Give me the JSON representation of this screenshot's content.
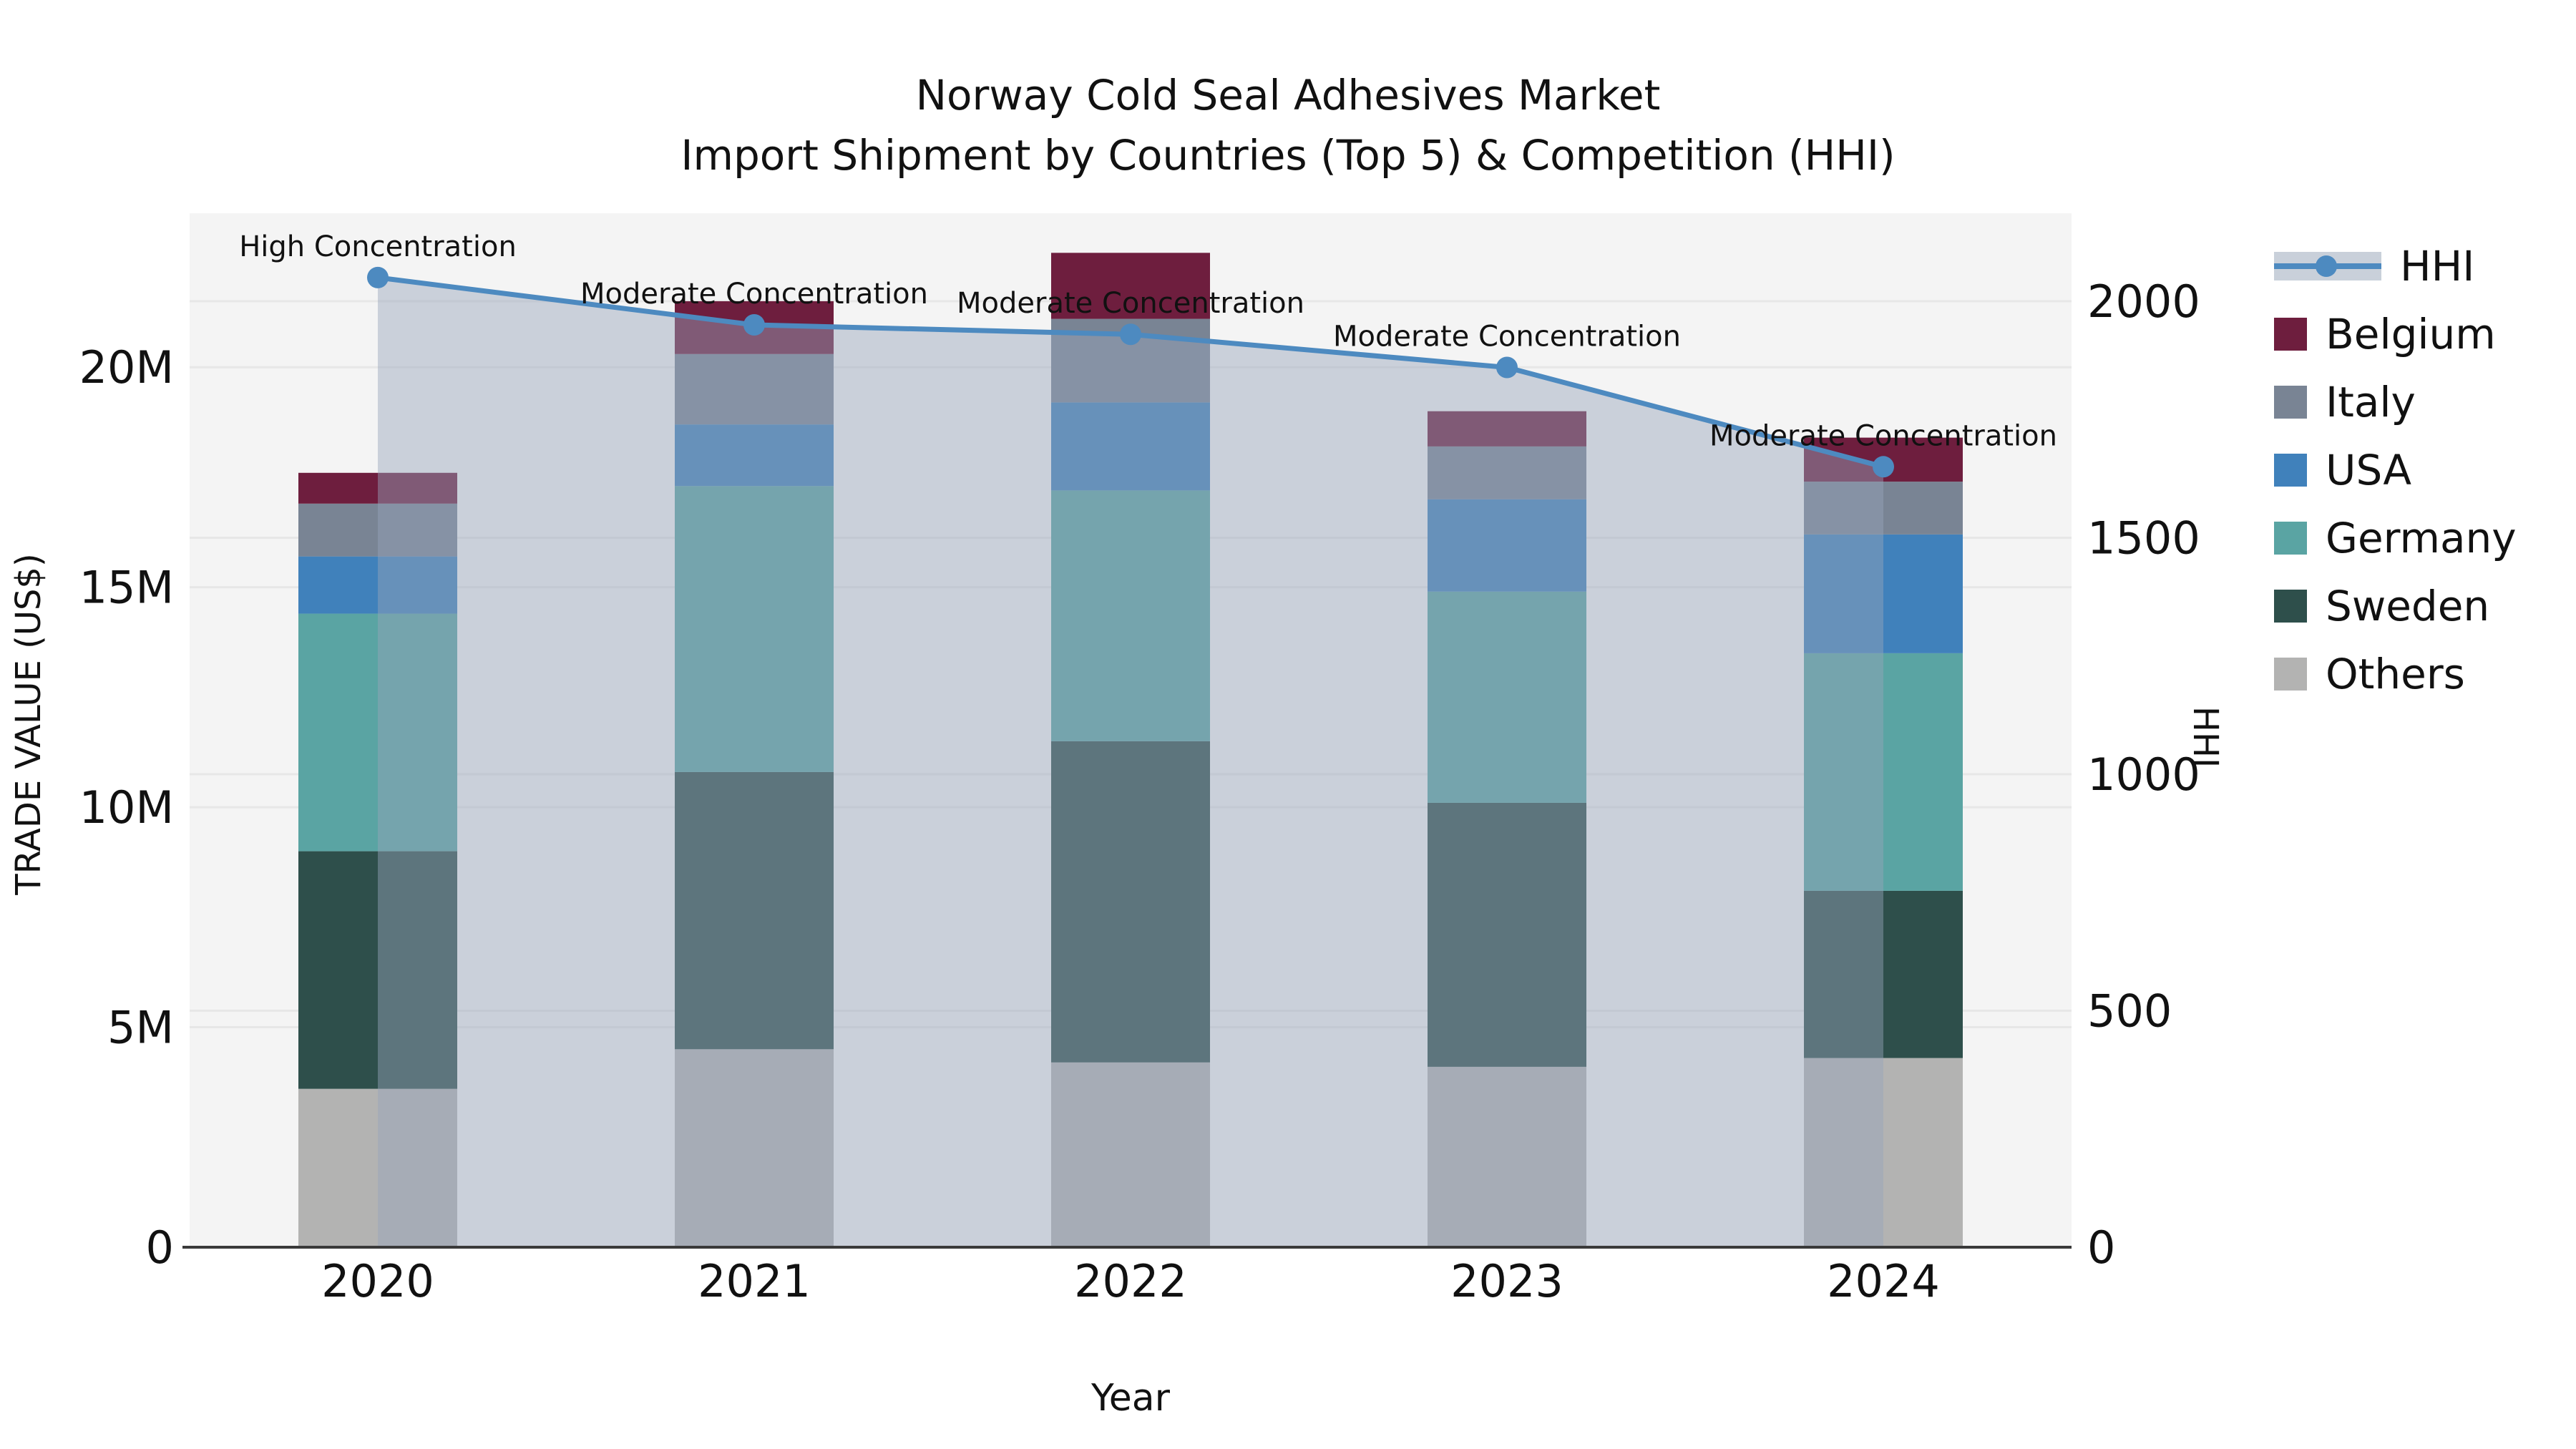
{
  "title": {
    "line1": "Norway Cold Seal Adhesives Market",
    "line2": "Import Shipment by Countries (Top 5) & Competition (HHI)"
  },
  "axes": {
    "left": {
      "title": "TRADE VALUE (US$)",
      "ticks": [
        {
          "label": "0",
          "value": 0
        },
        {
          "label": "5M",
          "value": 5
        },
        {
          "label": "10M",
          "value": 10
        },
        {
          "label": "15M",
          "value": 15
        },
        {
          "label": "20M",
          "value": 20
        }
      ]
    },
    "right": {
      "title": "HHI",
      "ticks": [
        {
          "label": "0",
          "value": 0
        },
        {
          "label": "500",
          "value": 500
        },
        {
          "label": "1000",
          "value": 1000
        },
        {
          "label": "1500",
          "value": 1500
        },
        {
          "label": "2000",
          "value": 2000
        }
      ]
    },
    "x": {
      "title": "Year"
    }
  },
  "legend": {
    "items": [
      {
        "label": "HHI",
        "type": "line"
      },
      {
        "label": "Belgium",
        "color": "#6e1e3e"
      },
      {
        "label": "Italy",
        "color": "#798494"
      },
      {
        "label": "USA",
        "color": "#4081bb"
      },
      {
        "label": "Germany",
        "color": "#5aa4a3"
      },
      {
        "label": "Sweden",
        "color": "#2e4f4b"
      },
      {
        "label": "Others",
        "color": "#b3b3b2"
      }
    ]
  },
  "annotations": [
    {
      "year": "2020",
      "text": "High Concentration"
    },
    {
      "year": "2021",
      "text": "Moderate Concentration"
    },
    {
      "year": "2022",
      "text": "Moderate Concentration"
    },
    {
      "year": "2023",
      "text": "Moderate Concentration"
    },
    {
      "year": "2024",
      "text": "Moderate Concentration"
    }
  ],
  "chart_data": {
    "type": "bar",
    "subtype": "stacked bars (trade value, left axis) with HHI line + shaded area overlay (right axis)",
    "title": "Norway Cold Seal Adhesives Market — Import Shipment by Countries (Top 5) & Competition (HHI)",
    "categories": [
      "2020",
      "2021",
      "2022",
      "2023",
      "2024"
    ],
    "stack_order_bottom_to_top": [
      "Others",
      "Sweden",
      "Germany",
      "USA",
      "Italy",
      "Belgium"
    ],
    "series": [
      {
        "name": "Others",
        "axis": "left",
        "color": "#b3b3b2",
        "values": [
          3.6,
          4.5,
          4.2,
          4.1,
          4.3
        ]
      },
      {
        "name": "Sweden",
        "axis": "left",
        "color": "#2e4f4b",
        "values": [
          5.4,
          6.3,
          7.3,
          6.0,
          3.8
        ]
      },
      {
        "name": "Germany",
        "axis": "left",
        "color": "#5aa4a3",
        "values": [
          5.4,
          6.5,
          5.7,
          4.8,
          5.4
        ]
      },
      {
        "name": "USA",
        "axis": "left",
        "color": "#4081bb",
        "values": [
          1.3,
          1.4,
          2.0,
          2.1,
          2.7
        ]
      },
      {
        "name": "Italy",
        "axis": "left",
        "color": "#798494",
        "values": [
          1.2,
          1.6,
          1.9,
          1.2,
          1.2
        ]
      },
      {
        "name": "Belgium",
        "axis": "left",
        "color": "#6e1e3e",
        "values": [
          0.7,
          1.2,
          1.5,
          0.8,
          1.0
        ]
      }
    ],
    "line_series": {
      "name": "HHI",
      "axis": "right",
      "color": "#4d8ac0",
      "area_fill": "rgba(151,165,187,0.45)",
      "values": [
        2050,
        1950,
        1930,
        1860,
        1650
      ]
    },
    "totals_trade_value_millions": [
      17.6,
      21.5,
      22.6,
      19.0,
      18.4
    ],
    "xlabel": "Year",
    "ylabel_left": "TRADE VALUE (US$)",
    "ylabel_right": "HHI",
    "ylim_left": [
      0,
      23.5
    ],
    "ylim_right": [
      0,
      2186
    ],
    "grid": true,
    "legend_position": "right of plot, top",
    "units_left": "US$ millions",
    "style": {
      "plot_bg": "#f4f4f4",
      "grid_color": "#e7e7e7",
      "spine_color": "#3a3a3a",
      "text_color": "#111111",
      "tick_font": 62,
      "annotation_font": 40
    }
  }
}
